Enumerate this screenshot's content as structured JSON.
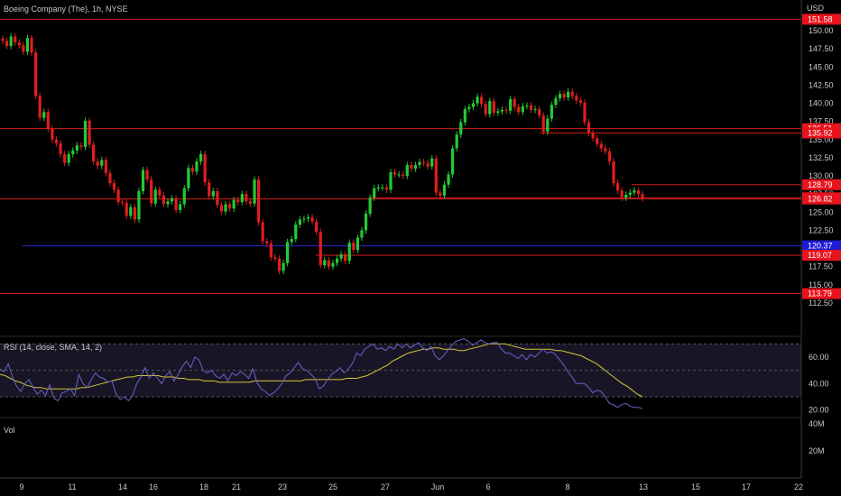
{
  "header": {
    "symbol": "Boeing Company (The), 1h, NYSE",
    "currency": "USD"
  },
  "colors": {
    "background": "#000000",
    "up_candle": "#22cc33",
    "down_candle": "#e01e1e",
    "level_line": "#d41c1c",
    "blue_line": "#2a2ad0",
    "rsi_line": "#6a62cc",
    "rsi_sma": "#d8c43a",
    "rsi_band": "#181626",
    "axis_text": "#c8c8c8",
    "tag_red": "#e8131d",
    "tag_blue": "#1c1cd6"
  },
  "chart_data": [
    {
      "type": "candlestick",
      "pane": "price",
      "ylim": [
        111,
        152
      ],
      "y_ticks": [
        "150.00",
        "147.50",
        "145.00",
        "142.50",
        "140.00",
        "137.50",
        "135.00",
        "132.50",
        "130.00",
        "127.50",
        "125.00",
        "122.50",
        "117.50",
        "115.00",
        "112.50"
      ],
      "x_ticks": [
        "9",
        "11",
        "14",
        "16",
        "18",
        "21",
        "23",
        "25",
        "27",
        "Jun",
        "6",
        "8",
        "13",
        "15",
        "17",
        "22"
      ],
      "levels": [
        {
          "value": 151.58,
          "label": "151.58",
          "color": "red",
          "tag": true
        },
        {
          "value": 136.51,
          "label": "136.51",
          "color": "red",
          "tag": true
        },
        {
          "value": 135.92,
          "label": "135.92",
          "color": "red",
          "tag": true
        },
        {
          "value": 128.79,
          "label": "128.79",
          "color": "red",
          "tag": true
        },
        {
          "value": 126.99,
          "label": "126.99",
          "color": "red",
          "tag": true
        },
        {
          "value": 126.82,
          "label": "126.82",
          "color": "red",
          "tag": true
        },
        {
          "value": 120.37,
          "label": "120.37",
          "color": "blue",
          "tag": true
        },
        {
          "value": 119.07,
          "label": "119.07",
          "color": "red",
          "tag": true
        },
        {
          "value": 113.79,
          "label": "113.79",
          "color": "red",
          "tag": true
        }
      ],
      "candles_close": [
        148.6,
        147.9,
        149.2,
        148.4,
        148.0,
        147.1,
        149.0,
        147.0,
        141.0,
        138.0,
        138.8,
        136.5,
        135.0,
        134.5,
        133.0,
        131.8,
        133.0,
        133.5,
        134.2,
        134.0,
        137.6,
        134.3,
        132.0,
        131.4,
        132.2,
        130.4,
        129.0,
        128.1,
        126.4,
        126.3,
        124.5,
        125.7,
        124.0,
        127.9,
        130.8,
        129.5,
        126.2,
        128.1,
        127.3,
        126.1,
        126.5,
        126.9,
        125.3,
        126.1,
        128.3,
        131.1,
        130.6,
        132.0,
        133.0,
        129.1,
        127.2,
        127.9,
        126.0,
        125.1,
        126.1,
        125.5,
        126.7,
        126.4,
        127.5,
        126.5,
        126.2,
        129.5,
        123.6,
        121.0,
        120.7,
        118.8,
        118.6,
        116.9,
        118.0,
        120.9,
        121.3,
        123.3,
        124.0,
        124.1,
        124.3,
        123.7,
        122.3,
        117.7,
        118.4,
        117.5,
        118.0,
        118.6,
        119.2,
        118.3,
        120.8,
        119.8,
        121.5,
        122.5,
        124.8,
        127.0,
        128.3,
        128.4,
        128.4,
        128.1,
        130.5,
        130.2,
        130.2,
        130.0,
        131.5,
        131.0,
        131.5,
        131.9,
        131.8,
        131.3,
        132.4,
        127.7,
        127.3,
        128.8,
        130.2,
        133.8,
        135.7,
        137.4,
        139.2,
        139.5,
        140.0,
        140.9,
        139.9,
        138.5,
        140.3,
        138.7,
        138.9,
        139.1,
        139.0,
        140.6,
        139.5,
        138.8,
        139.6,
        139.7,
        139.1,
        139.2,
        138.3,
        136.1,
        137.9,
        139.8,
        140.7,
        141.3,
        140.8,
        141.6,
        141.0,
        140.4,
        140.1,
        137.4,
        135.9,
        135.2,
        134.4,
        133.8,
        133.4,
        132.0,
        129.0,
        128.0,
        127.0,
        127.4,
        127.7,
        128.0,
        127.5,
        126.9
      ]
    },
    {
      "type": "line",
      "pane": "rsi",
      "label": "RSI (14, close, SMA, 14, 2)",
      "ylim": [
        15,
        75
      ],
      "y_ticks": [
        "60.00",
        "40.00",
        "20.00"
      ],
      "bands": [
        30,
        50,
        70
      ],
      "series_rsi": [
        51,
        49,
        55,
        45,
        38,
        34,
        40,
        43,
        37,
        32,
        35,
        31,
        39,
        29,
        27,
        33,
        34,
        36,
        31,
        47,
        40,
        37,
        43,
        48,
        45,
        44,
        41,
        42,
        32,
        28,
        30,
        27,
        31,
        40,
        45,
        52,
        44,
        48,
        44,
        40,
        46,
        49,
        42,
        47,
        53,
        57,
        52,
        60,
        58,
        50,
        48,
        50,
        46,
        44,
        47,
        42,
        48,
        46,
        49,
        47,
        44,
        51,
        41,
        36,
        34,
        31,
        33,
        36,
        40,
        46,
        48,
        52,
        56,
        51,
        50,
        47,
        44,
        36,
        38,
        43,
        47,
        49,
        52,
        48,
        51,
        55,
        63,
        61,
        66,
        68,
        70,
        66,
        67,
        65,
        68,
        66,
        70,
        67,
        70,
        67,
        69,
        71,
        67,
        65,
        68,
        61,
        58,
        61,
        65,
        69,
        72,
        73,
        74,
        72,
        69,
        71,
        73,
        71,
        70,
        71,
        71,
        66,
        63,
        63,
        61,
        59,
        62,
        58,
        62,
        60,
        63,
        66,
        63,
        64,
        62,
        58,
        54,
        49,
        45,
        40,
        40,
        40,
        37,
        33,
        35,
        34,
        30,
        25,
        24,
        22,
        24,
        25,
        23,
        22,
        22,
        21
      ],
      "series_sma": [
        47,
        46,
        44,
        42,
        41,
        39,
        38,
        37,
        37,
        36,
        36,
        36,
        36,
        36,
        36,
        36,
        37,
        37,
        38,
        39,
        40,
        41,
        42,
        43,
        44,
        45,
        45,
        46,
        46,
        46,
        46,
        46,
        45,
        45,
        45,
        44,
        44,
        43,
        43,
        43,
        42,
        42,
        42,
        41,
        41,
        41,
        41,
        41,
        41,
        41,
        42,
        42,
        42,
        42,
        42,
        42,
        42,
        42,
        42,
        42,
        43,
        43,
        43,
        43,
        43,
        43,
        43,
        43,
        44,
        44,
        44,
        45,
        46,
        48,
        50,
        52,
        54,
        57,
        59,
        61,
        63,
        64,
        65,
        66,
        66,
        67,
        67,
        66,
        66,
        66,
        65,
        65,
        66,
        67,
        68,
        69,
        70,
        70,
        70,
        70,
        69,
        68,
        67,
        66,
        66,
        66,
        66,
        66,
        66,
        65,
        65,
        64,
        63,
        62,
        61,
        59,
        57,
        55,
        52,
        49,
        46,
        43,
        40,
        38,
        35,
        32,
        30
      ]
    },
    {
      "type": "bar",
      "pane": "volume",
      "label": "Vol",
      "y_ticks": [
        "40M",
        "20M"
      ]
    }
  ]
}
